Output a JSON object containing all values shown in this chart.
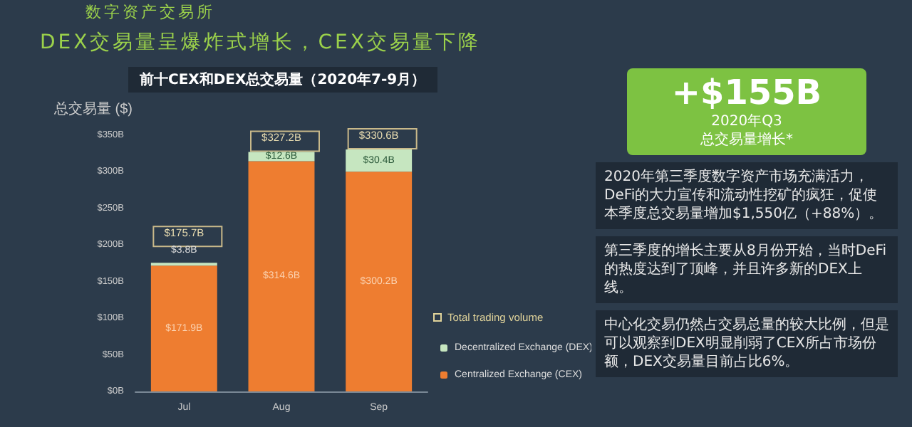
{
  "chart_data": {
    "type": "bar",
    "title": "DEX交易量呈爆炸式增长，CEX交易量下降",
    "subtitle": "前十CEX和DEX总交易量（2020年7-9月）",
    "categories": [
      "Jul",
      "Aug",
      "Sep"
    ],
    "stacked": true,
    "series": [
      {
        "name": "Centralized Exchange (CEX)",
        "color": "#ee7d30",
        "values": [
          171.9,
          314.6,
          300.2
        ],
        "value_labels": [
          "$171.9B",
          "$314.6B",
          "$300.2B"
        ]
      },
      {
        "name": "Decentralized Exchange (DEX)",
        "color": "#c6e6c0",
        "values": [
          3.8,
          12.6,
          30.4
        ],
        "value_labels": [
          "$3.8B",
          "$12.6B",
          "$30.4B"
        ]
      }
    ],
    "totals": [
      "$175.7B",
      "$327.2B",
      "$330.6B"
    ],
    "ylim": [
      0,
      350
    ],
    "yticks": [
      {
        "value": 0,
        "label": "$0B"
      },
      {
        "value": 50,
        "label": "$50B"
      },
      {
        "value": 100,
        "label": "$100B"
      },
      {
        "value": 150,
        "label": "$150B"
      },
      {
        "value": 200,
        "label": "$200B"
      },
      {
        "value": 250,
        "label": "$250B"
      },
      {
        "value": 300,
        "label": "$300B"
      },
      {
        "value": 350,
        "label": "$350B"
      }
    ],
    "grid": false,
    "legend": "right",
    "annotations": [
      "数字资产交易所",
      "总交易量 ($)",
      "Total trading volume",
      "+$155B",
      "2020年Q3",
      "总交易量增长*",
      "2020年第三季度数字资产市场充满活力，DeFi的大力宣传和流动性挖矿的疯狂，促使本季度总交易量增加$1,550亿（+88%）。",
      "第三季度的增长主要从8月份开始，当时DeFi的热度达到了顶峰，并且许多新的DEX上线。",
      "中心化交易仍然占交易总量的较大比例，但是可以观察到DEX明显削弱了CEX所占市场份额，DEX交易量目前占比6%。"
    ]
  }
}
